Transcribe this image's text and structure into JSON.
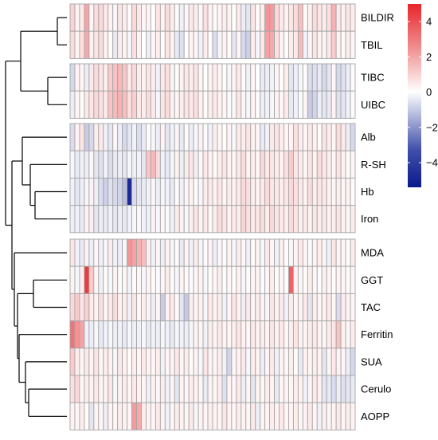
{
  "chart_data": {
    "type": "heatmap",
    "title": "",
    "xlabel": "",
    "ylabel": "",
    "rows": [
      "BILDIR",
      "TBIL",
      "TIBC",
      "UIBC",
      "Alb",
      "R-SH",
      "Hb",
      "Iron",
      "MDA",
      "GGT",
      "TAC",
      "Ferritin",
      "SUA",
      "Cerulo",
      "AOPP"
    ],
    "row_groups": [
      [
        "BILDIR",
        "TBIL"
      ],
      [
        "TIBC",
        "UIBC"
      ],
      [
        "Alb",
        "R-SH",
        "Hb",
        "Iron"
      ],
      [
        "MDA",
        "GGT",
        "TAC",
        "Ferritin",
        "SUA",
        "Cerulo",
        "AOPP"
      ]
    ],
    "n_columns": 60,
    "row_dendrogram": "hierarchical clustering tree on the left",
    "color_scale": {
      "low": "#0a1a8c",
      "mid": "#ffffff",
      "high": "#e8252a",
      "range": [
        -5.4,
        5
      ],
      "ticks": [
        4,
        2,
        0,
        -2,
        -4
      ],
      "tick_labels": [
        "4",
        "2",
        "0",
        "−2",
        "−4"
      ]
    },
    "legend_position": "top-right",
    "values": [
      [
        1.0,
        0.3,
        0.5,
        2.1,
        0.2,
        0.8,
        0.9,
        0.5,
        0.3,
        -0.2,
        0.6,
        0.4,
        0.1,
        0.9,
        0.5,
        0.2,
        0.3,
        0.0,
        0.6,
        0.3,
        0.8,
        0.4,
        0.1,
        -0.3,
        0.2,
        0.5,
        0.4,
        0.2,
        0.7,
        0.3,
        0.1,
        0.2,
        0.4,
        0.3,
        0.0,
        0.5,
        -0.4,
        -0.6,
        0.6,
        0.1,
        0.4,
        2.4,
        2.3,
        0.9,
        0.5,
        0.3,
        0.6,
        0.8,
        1.5,
        0.1,
        0.3,
        0.8,
        0.6,
        0.4,
        0.7,
        1.8,
        0.5,
        0.3,
        0.6,
        0.4
      ],
      [
        0.8,
        0.2,
        0.7,
        2.0,
        0.3,
        0.6,
        0.8,
        0.3,
        0.1,
        -0.5,
        0.4,
        0.3,
        -0.2,
        0.7,
        0.3,
        0.0,
        -0.4,
        0.2,
        0.4,
        0.1,
        0.6,
        0.3,
        -0.5,
        -0.7,
        0.0,
        0.3,
        0.2,
        -0.3,
        0.4,
        0.1,
        -0.8,
        -0.2,
        0.3,
        0.1,
        -0.6,
        0.2,
        -0.9,
        -1.1,
        0.4,
        -0.2,
        0.5,
        2.1,
        2.0,
        0.7,
        0.3,
        0.1,
        0.4,
        0.5,
        1.6,
        -0.3,
        0.2,
        0.6,
        0.3,
        0.2,
        0.5,
        1.2,
        0.3,
        0.1,
        0.4,
        0.2
      ],
      [
        -0.9,
        0.3,
        0.2,
        -0.4,
        0.5,
        0.8,
        0.6,
        0.4,
        1.2,
        1.4,
        1.6,
        1.3,
        0.5,
        0.9,
        0.4,
        0.3,
        0.6,
        0.4,
        -0.3,
        0.5,
        0.7,
        0.2,
        0.1,
        0.3,
        0.5,
        0.4,
        0.6,
        0.2,
        0.0,
        0.3,
        0.4,
        0.2,
        0.1,
        -0.2,
        0.3,
        0.5,
        0.1,
        -0.3,
        0.2,
        0.0,
        -0.5,
        -0.4,
        -0.3,
        0.2,
        0.1,
        0.4,
        -0.6,
        -0.4,
        -0.2,
        0.1,
        -0.8,
        -0.7,
        -0.5,
        -0.9,
        -0.6,
        0.2,
        -0.9,
        -0.7,
        -0.4,
        0.1
      ],
      [
        -0.4,
        0.2,
        0.1,
        0.5,
        0.6,
        0.9,
        0.7,
        0.5,
        1.4,
        1.6,
        1.8,
        1.5,
        0.7,
        1.1,
        0.5,
        0.4,
        0.8,
        0.5,
        -0.2,
        0.6,
        0.8,
        0.3,
        0.2,
        0.4,
        0.6,
        0.5,
        0.7,
        0.3,
        0.1,
        0.4,
        0.5,
        0.3,
        0.2,
        -0.1,
        0.2,
        0.6,
        0.2,
        -0.2,
        0.3,
        0.1,
        -0.4,
        -0.3,
        -0.2,
        0.3,
        0.2,
        0.5,
        -0.5,
        -0.3,
        -0.1,
        0.2,
        -1.2,
        -1.0,
        -0.4,
        -0.6,
        -0.5,
        0.3,
        -0.7,
        -0.6,
        -0.3,
        0.1
      ],
      [
        -0.8,
        0.3,
        0.6,
        -1.2,
        -0.9,
        0.4,
        0.5,
        -0.3,
        -0.6,
        0.2,
        -0.4,
        -0.9,
        -0.6,
        -0.3,
        -0.8,
        -0.5,
        0.1,
        -0.2,
        -0.4,
        0.3,
        -0.6,
        -0.3,
        0.2,
        -0.5,
        0.1,
        -0.4,
        -0.2,
        0.3,
        -0.1,
        -0.3,
        0.4,
        0.2,
        0.1,
        0.3,
        -0.2,
        0.5,
        0.4,
        0.6,
        0.3,
        0.2,
        -0.5,
        -0.3,
        0.5,
        0.6,
        0.4,
        0.2,
        0.3,
        0.7,
        0.4,
        0.2,
        0.5,
        0.3,
        0.1,
        0.6,
        0.4,
        0.2,
        0.8,
        0.5,
        -0.4,
        -0.9
      ],
      [
        -0.2,
        -0.5,
        -0.3,
        -0.4,
        0.2,
        -0.6,
        -0.7,
        -0.3,
        -0.8,
        -0.5,
        -0.4,
        -0.6,
        -0.2,
        -0.4,
        -0.3,
        -0.6,
        1.3,
        1.6,
        0.8,
        -0.3,
        -0.5,
        -0.2,
        0.3,
        -0.4,
        0.4,
        0.6,
        -0.3,
        0.2,
        0.5,
        0.3,
        0.1,
        0.4,
        0.6,
        0.3,
        0.2,
        0.5,
        0.8,
        0.3,
        0.4,
        0.2,
        0.9,
        0.5,
        0.6,
        0.4,
        0.3,
        0.7,
        1.2,
        0.5,
        0.4,
        0.2,
        0.6,
        0.3,
        0.8,
        0.5,
        0.4,
        0.2,
        0.6,
        0.3,
        0.1,
        0.2
      ],
      [
        -0.3,
        -0.6,
        -0.4,
        -0.2,
        0.3,
        -0.4,
        -0.8,
        -1.1,
        -0.7,
        -0.9,
        -1.0,
        -1.5,
        -5.0,
        -0.8,
        -0.6,
        -0.5,
        -0.3,
        0.2,
        -0.4,
        -0.2,
        -0.3,
        -0.5,
        0.1,
        -0.3,
        0.2,
        0.3,
        0.1,
        -0.2,
        0.4,
        0.5,
        0.3,
        0.6,
        0.2,
        0.4,
        0.3,
        0.5,
        0.9,
        0.7,
        0.4,
        0.3,
        0.5,
        0.8,
        0.6,
        0.5,
        0.4,
        0.6,
        0.9,
        0.7,
        0.5,
        0.3,
        0.8,
        0.4,
        0.6,
        0.5,
        0.3,
        0.2,
        0.4,
        0.2,
        0.3,
        0.1
      ],
      [
        -0.4,
        -0.3,
        -0.5,
        0.3,
        0.4,
        -0.6,
        -0.4,
        -0.5,
        -0.3,
        -0.6,
        -0.4,
        -0.5,
        -0.3,
        -0.2,
        0.2,
        -0.3,
        -0.4,
        0.3,
        -0.2,
        0.2,
        -0.1,
        -0.3,
        0.4,
        0.3,
        -0.2,
        0.4,
        0.6,
        0.3,
        0.5,
        0.2,
        0.4,
        0.8,
        0.6,
        0.3,
        0.5,
        0.4,
        1.0,
        0.7,
        0.5,
        0.6,
        0.8,
        0.4,
        0.9,
        0.6,
        0.5,
        0.4,
        0.8,
        0.6,
        0.4,
        0.5,
        0.3,
        0.6,
        0.4,
        0.5,
        0.3,
        0.4,
        0.6,
        0.3,
        0.2,
        0.4
      ],
      [
        0.6,
        -0.3,
        -0.5,
        0.3,
        -0.4,
        0.2,
        -0.3,
        -0.2,
        0.4,
        -0.3,
        -0.4,
        -0.2,
        2.4,
        2.1,
        1.8,
        1.5,
        0.4,
        -0.3,
        0.2,
        -0.4,
        0.3,
        -0.2,
        0.1,
        -0.5,
        0.2,
        -0.3,
        0.4,
        -0.2,
        0.1,
        0.3,
        -0.4,
        0.2,
        -0.1,
        0.3,
        -0.2,
        0.4,
        0.2,
        -0.3,
        0.1,
        0.3,
        -0.2,
        0.5,
        0.2,
        -0.3,
        0.4,
        0.1,
        -0.2,
        0.3,
        0.5,
        0.2,
        -0.1,
        0.3,
        0.4,
        0.2,
        -0.3,
        0.6,
        0.3,
        0.2,
        0.1,
        0.4
      ],
      [
        0.3,
        -0.2,
        0.4,
        4.5,
        1.2,
        0.2,
        -0.3,
        0.1,
        -0.2,
        0.3,
        -0.1,
        0.2,
        -0.3,
        0.1,
        0.2,
        -0.2,
        0.3,
        0.1,
        -0.1,
        0.2,
        0.4,
        0.1,
        -0.2,
        0.3,
        0.1,
        -0.1,
        0.2,
        0.3,
        -0.2,
        0.1,
        0.2,
        0.4,
        -0.1,
        0.2,
        0.1,
        0.3,
        -0.2,
        0.1,
        0.2,
        0.3,
        -0.1,
        0.2,
        0.4,
        0.1,
        0.2,
        -0.1,
        3.6,
        0.3,
        0.2,
        0.1,
        0.4,
        0.2,
        -0.1,
        0.3,
        0.2,
        0.1,
        0.3,
        0.2,
        0.1,
        0.2
      ],
      [
        0.9,
        1.2,
        0.6,
        1.1,
        0.4,
        0.3,
        0.7,
        0.2,
        0.5,
        0.8,
        0.3,
        0.4,
        -0.3,
        0.6,
        0.2,
        0.4,
        0.3,
        -0.4,
        0.2,
        -1.2,
        0.3,
        0.5,
        0.1,
        -0.6,
        -1.3,
        0.4,
        0.2,
        0.3,
        -0.2,
        0.5,
        0.3,
        0.4,
        -0.3,
        0.2,
        0.6,
        0.3,
        -0.4,
        0.5,
        0.2,
        0.4,
        0.3,
        -0.2,
        0.6,
        0.3,
        0.5,
        -0.3,
        0.4,
        0.2,
        0.3,
        0.5,
        -0.6,
        0.4,
        0.2,
        0.3,
        0.5,
        0.2,
        -0.8,
        0.4,
        0.3,
        0.2
      ],
      [
        3.2,
        2.5,
        2.1,
        -0.3,
        -0.4,
        -0.2,
        -0.5,
        -0.3,
        -0.2,
        -0.4,
        -0.3,
        -0.5,
        -0.2,
        -0.4,
        -0.3,
        -0.2,
        -0.5,
        -0.3,
        -0.4,
        -0.2,
        -0.3,
        -0.5,
        -0.2,
        -0.3,
        -0.4,
        -0.2,
        0.3,
        0.2,
        -0.3,
        0.4,
        0.2,
        0.5,
        0.3,
        0.2,
        0.4,
        0.6,
        0.3,
        0.2,
        0.5,
        0.3,
        0.4,
        0.2,
        0.6,
        0.3,
        0.5,
        0.2,
        0.4,
        0.6,
        0.3,
        0.2,
        0.4,
        0.5,
        0.3,
        0.2,
        0.4,
        0.6,
        1.4,
        0.3,
        0.2,
        0.4
      ],
      [
        1.2,
        0.4,
        0.2,
        0.5,
        0.3,
        0.6,
        0.2,
        0.4,
        0.3,
        -0.2,
        0.5,
        0.3,
        0.1,
        0.4,
        0.2,
        0.5,
        0.3,
        0.2,
        0.4,
        -0.3,
        0.2,
        0.3,
        0.5,
        0.2,
        0.4,
        0.1,
        0.3,
        -0.2,
        0.6,
        0.3,
        0.2,
        0.4,
        -0.3,
        -1.0,
        0.2,
        0.3,
        0.5,
        -0.2,
        0.4,
        0.3,
        -0.4,
        0.2,
        0.5,
        -0.3,
        0.3,
        0.2,
        0.4,
        0.1,
        -0.5,
        0.3,
        0.2,
        0.4,
        0.3,
        -0.6,
        0.2,
        0.5,
        0.3,
        0.2,
        -0.4,
        -0.9
      ],
      [
        0.7,
        0.9,
        0.2,
        0.4,
        0.3,
        0.5,
        0.2,
        0.3,
        0.6,
        -0.2,
        0.3,
        0.4,
        0.2,
        0.5,
        0.3,
        0.2,
        -0.4,
        0.3,
        0.2,
        0.4,
        -0.3,
        0.2,
        -0.6,
        0.3,
        0.2,
        0.4,
        0.3,
        0.2,
        -0.5,
        0.3,
        0.2,
        0.4,
        -0.7,
        0.3,
        0.2,
        0.5,
        -0.4,
        0.2,
        -0.6,
        0.3,
        0.2,
        0.4,
        0.3,
        -0.5,
        0.2,
        0.3,
        0.2,
        0.4,
        0.3,
        -0.3,
        0.2,
        0.5,
        0.3,
        -0.6,
        -0.5,
        -0.8,
        -0.4,
        -0.7,
        -0.6,
        -0.5
      ],
      [
        0.3,
        0.2,
        0.4,
        0.1,
        -0.6,
        0.3,
        0.2,
        -0.4,
        0.3,
        0.2,
        0.4,
        0.3,
        0.2,
        2.3,
        2.0,
        0.4,
        0.3,
        0.2,
        0.5,
        0.3,
        -0.3,
        0.2,
        0.4,
        0.3,
        0.2,
        0.5,
        -0.2,
        0.3,
        0.2,
        0.4,
        0.3,
        0.2,
        0.6,
        0.3,
        0.2,
        0.4,
        0.3,
        0.2,
        0.5,
        -0.4,
        0.3,
        0.2,
        0.4,
        0.3,
        0.5,
        0.2,
        0.3,
        0.4,
        0.2,
        0.3,
        0.5,
        0.2,
        -0.3,
        0.4,
        0.2,
        0.3,
        0.5,
        0.2,
        0.4,
        0.3
      ]
    ]
  }
}
